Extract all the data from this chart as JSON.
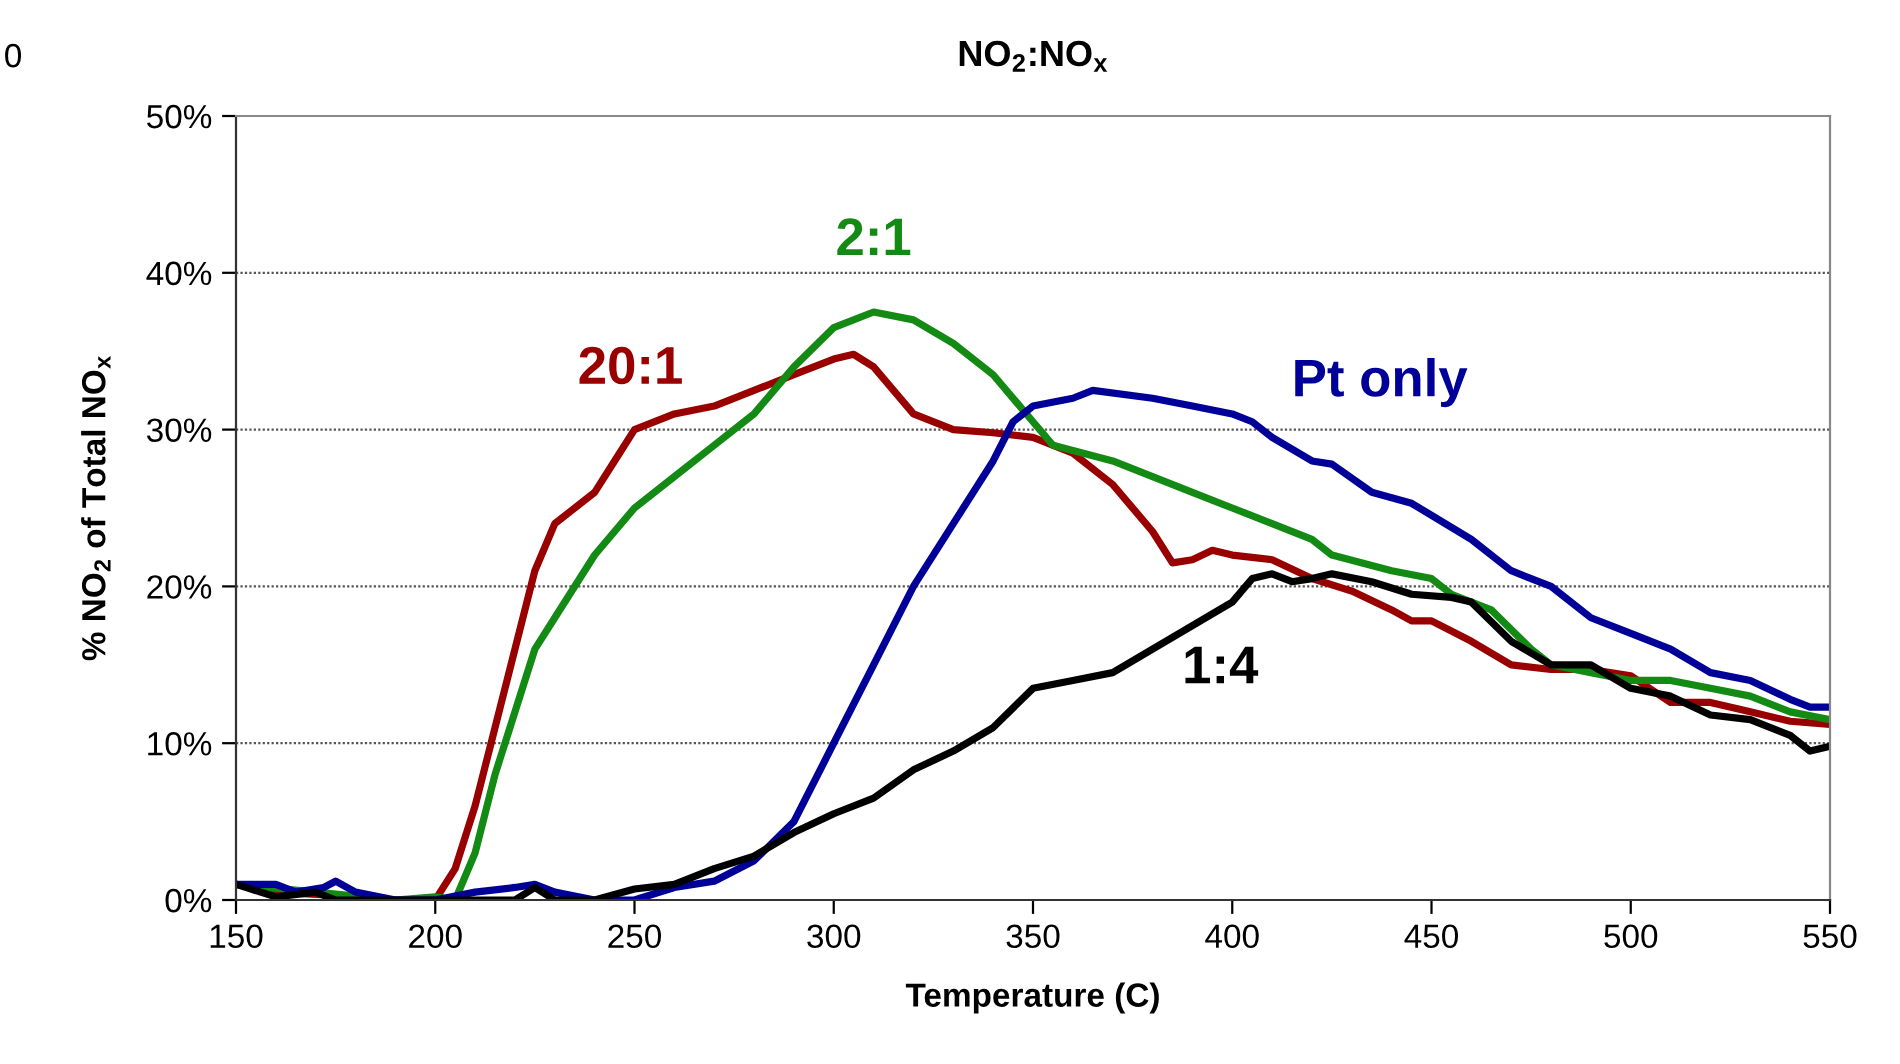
{
  "chart_data": {
    "type": "line",
    "title": "NO$_{2}$:NO$_{x}$",
    "xlabel": "Temperature (C)",
    "ylabel": "% NO$_{2}$ of Total NO$_{x}$",
    "xlim": [
      150,
      550
    ],
    "xticks": [
      150,
      200,
      250,
      300,
      350,
      400,
      450,
      500,
      550
    ],
    "ylim": [
      0,
      50
    ],
    "yticks": [
      {
        "value": 0,
        "label": "0%"
      },
      {
        "value": 10,
        "label": "10%"
      },
      {
        "value": 20,
        "label": "20%"
      },
      {
        "value": 30,
        "label": "30%"
      },
      {
        "value": 40,
        "label": "40%"
      },
      {
        "value": 50,
        "label": "50%"
      }
    ],
    "grid": "y",
    "legend": false,
    "marker": "none",
    "line_style": "solid",
    "annotations": [
      "0"
    ],
    "series": [
      {
        "name": "20:1",
        "color": "#990000",
        "x": [
          150,
          160,
          175,
          190,
          200,
          205,
          210,
          215,
          220,
          225,
          230,
          240,
          245,
          250,
          260,
          270,
          280,
          290,
          300,
          305,
          310,
          315,
          320,
          330,
          340,
          350,
          360,
          370,
          380,
          385,
          390,
          395,
          400,
          410,
          420,
          430,
          440,
          445,
          450,
          460,
          470,
          480,
          490,
          500,
          510,
          520,
          530,
          540,
          550
        ],
        "values": [
          1,
          0.5,
          0.3,
          0,
          0,
          2,
          6,
          11,
          16,
          21,
          24,
          26,
          28,
          30,
          31,
          31.5,
          32.5,
          33.5,
          34.5,
          34.8,
          34,
          32.5,
          31,
          30,
          29.8,
          29.5,
          28.5,
          26.5,
          23.5,
          21.5,
          21.7,
          22.3,
          22,
          21.7,
          20.5,
          19.7,
          18.5,
          17.8,
          17.8,
          16.5,
          15,
          14.7,
          14.7,
          14.3,
          12.6,
          12.6,
          12,
          11.4,
          11.2
        ]
      },
      {
        "name": "2:1",
        "color": "#138a13",
        "x": [
          150,
          170,
          190,
          200,
          205,
          210,
          215,
          220,
          225,
          230,
          240,
          250,
          260,
          270,
          280,
          290,
          300,
          310,
          320,
          330,
          340,
          350,
          355,
          370,
          380,
          390,
          400,
          410,
          420,
          425,
          440,
          450,
          455,
          460,
          465,
          475,
          480,
          490,
          500,
          510,
          520,
          530,
          540,
          550
        ],
        "values": [
          1,
          0.5,
          0,
          0.2,
          0,
          3,
          8,
          12,
          16,
          18,
          22,
          25,
          27,
          29,
          31,
          34,
          36.5,
          37.5,
          37,
          35.5,
          33.5,
          30.5,
          29,
          28,
          27,
          26,
          25,
          24,
          23,
          22,
          21,
          20.5,
          19.5,
          19,
          18.5,
          16,
          15,
          14.5,
          14,
          14,
          13.5,
          13,
          12,
          11.5
        ]
      },
      {
        "name": "Pt only",
        "color": "#000099",
        "x": [
          150,
          160,
          165,
          172,
          175,
          180,
          190,
          200,
          210,
          220,
          225,
          230,
          240,
          250,
          260,
          270,
          280,
          290,
          300,
          310,
          320,
          330,
          340,
          345,
          350,
          360,
          365,
          380,
          390,
          400,
          405,
          410,
          420,
          425,
          435,
          445,
          460,
          470,
          480,
          490,
          500,
          510,
          520,
          530,
          540,
          545,
          550
        ],
        "values": [
          1,
          1,
          0.5,
          0.8,
          1.2,
          0.5,
          0,
          0,
          0.5,
          0.8,
          1,
          0.5,
          0,
          0,
          0.8,
          1.2,
          2.5,
          5,
          10,
          15,
          20,
          24,
          28,
          30.5,
          31.5,
          32,
          32.5,
          32,
          31.5,
          31,
          30.5,
          29.5,
          28,
          27.8,
          26,
          25.3,
          23,
          21,
          20,
          18,
          17,
          16,
          14.5,
          14,
          12.8,
          12.3,
          12.3
        ]
      },
      {
        "name": "1:4",
        "color": "#000000",
        "x": [
          150,
          160,
          170,
          175,
          190,
          200,
          220,
          225,
          230,
          240,
          250,
          260,
          270,
          280,
          290,
          300,
          310,
          320,
          330,
          340,
          350,
          360,
          370,
          380,
          390,
          400,
          405,
          410,
          415,
          420,
          425,
          435,
          445,
          455,
          460,
          470,
          480,
          490,
          500,
          510,
          520,
          530,
          540,
          545,
          550
        ],
        "values": [
          1,
          0.2,
          0.5,
          0,
          0,
          0,
          0,
          0.8,
          0,
          0,
          0.7,
          1,
          2,
          2.8,
          4.3,
          5.5,
          6.5,
          8.3,
          9.5,
          11,
          13.5,
          14,
          14.5,
          16,
          17.5,
          19,
          20.5,
          20.8,
          20.3,
          20.5,
          20.8,
          20.3,
          19.5,
          19.3,
          19,
          16.5,
          15,
          15,
          13.5,
          13,
          11.8,
          11.5,
          10.5,
          9.5,
          9.8
        ]
      }
    ]
  }
}
